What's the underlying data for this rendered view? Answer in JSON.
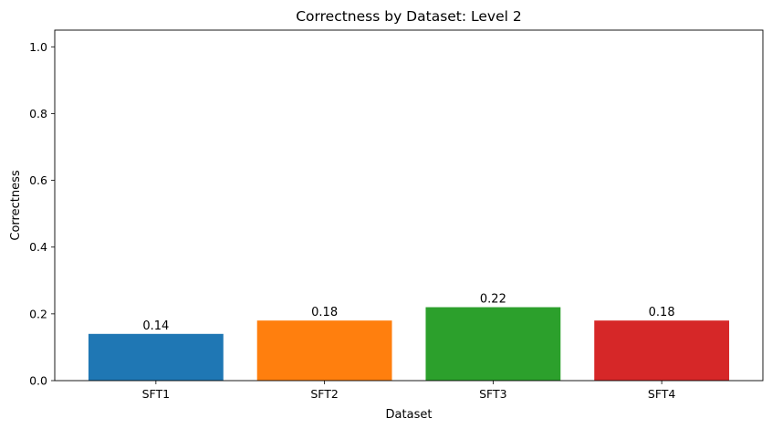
{
  "chart_data": {
    "type": "bar",
    "title": "Correctness by Dataset: Level 2",
    "xlabel": "Dataset",
    "ylabel": "Correctness",
    "categories": [
      "SFT1",
      "SFT2",
      "SFT3",
      "SFT4"
    ],
    "values": [
      0.14,
      0.18,
      0.22,
      0.18
    ],
    "value_labels": [
      "0.14",
      "0.18",
      "0.22",
      "0.18"
    ],
    "colors": [
      "#1f77b4",
      "#ff7f0e",
      "#2ca02c",
      "#d62728"
    ],
    "ylim": [
      0,
      1.05
    ],
    "yticks": [
      0.0,
      0.2,
      0.4,
      0.6,
      0.8,
      1.0
    ],
    "ytick_labels": [
      "0.0",
      "0.2",
      "0.4",
      "0.6",
      "0.8",
      "1.0"
    ],
    "grid": false,
    "legend": false
  }
}
